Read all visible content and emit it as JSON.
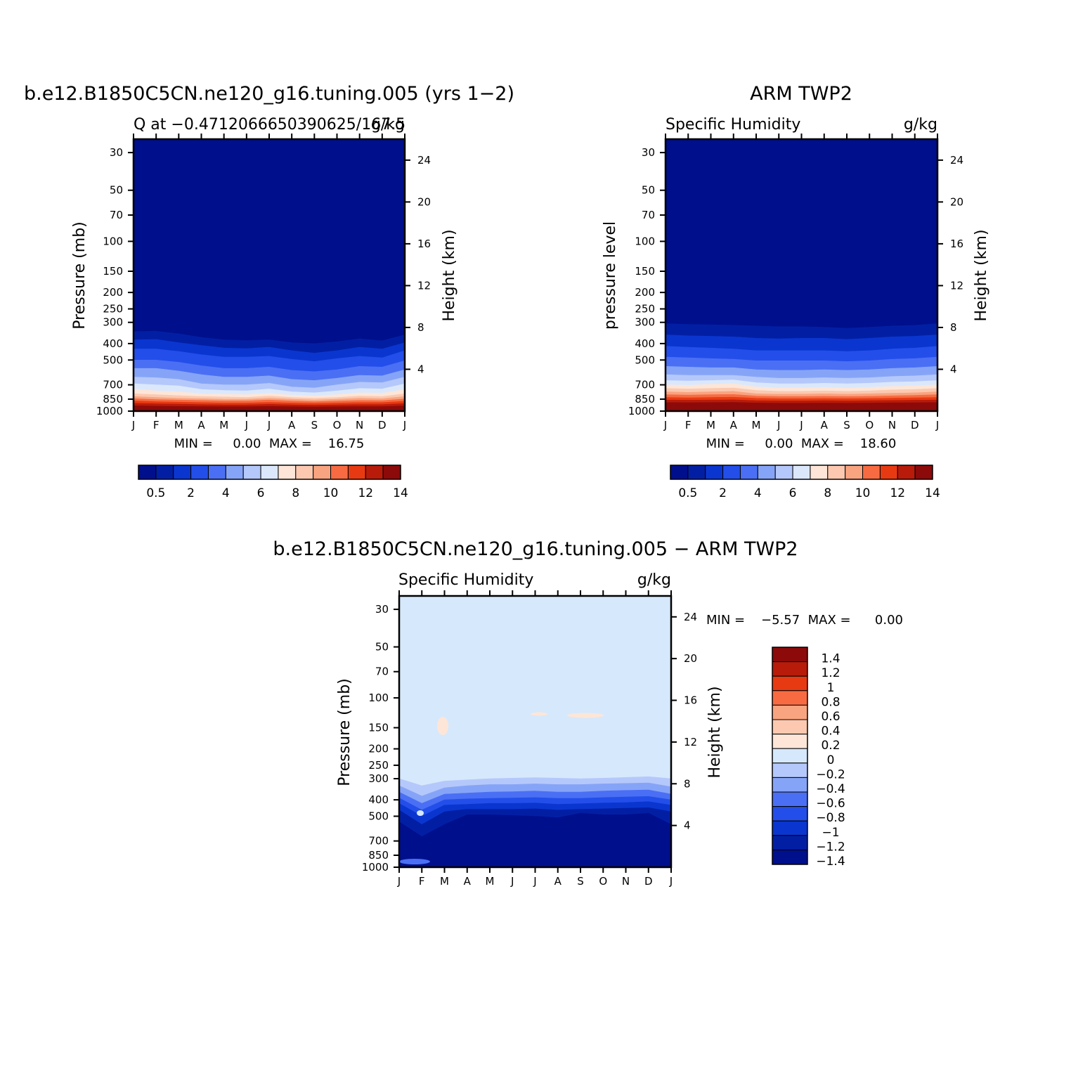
{
  "chart_data": [
    {
      "type": "heatmap",
      "title": "b.e12.B1850C5CN.ne120_g16.tuning.005 (yrs 1−2)",
      "subtitle_left": "Q at −0.4712066650390625/167.5",
      "subtitle_right": "g/kg",
      "ylabel": "Pressure (mb)",
      "ylabel_right": "Height (km)",
      "x_ticks": [
        "J",
        "F",
        "M",
        "A",
        "M",
        "J",
        "J",
        "A",
        "S",
        "O",
        "N",
        "D",
        "J"
      ],
      "y_ticks": [
        30,
        50,
        70,
        100,
        150,
        200,
        250,
        300,
        400,
        500,
        700,
        850,
        1000
      ],
      "y_right_ticks": [
        4,
        8,
        12,
        16,
        20,
        24
      ],
      "ylim": [
        1000,
        25
      ],
      "minmax_text": "MIN =     0.00  MAX =    16.75",
      "colorbar_labels": [
        "0.5",
        "2",
        "4",
        "6",
        "8",
        "10",
        "12",
        "14"
      ],
      "contour_levels": [
        0.5,
        1,
        2,
        3,
        4,
        5,
        6,
        7,
        8,
        9,
        10,
        11,
        12,
        13,
        14
      ],
      "band_tops_mb": [
        [
          420,
          350,
          270,
          160,
          340,
          270,
          180,
          100,
          350,
          260,
          170
        ],
        [
          420,
          350,
          270,
          160,
          340,
          270,
          180,
          100,
          350,
          260,
          170
        ]
      ],
      "min": 0.0,
      "max": 16.75
    },
    {
      "type": "heatmap",
      "title": "ARM TWP2",
      "subtitle_left": "Specific Humidity",
      "subtitle_right": "g/kg",
      "ylabel": "pressure level",
      "ylabel_right": "Height (km)",
      "x_ticks": [
        "J",
        "F",
        "M",
        "A",
        "M",
        "J",
        "J",
        "A",
        "S",
        "O",
        "N",
        "D",
        "J"
      ],
      "y_ticks": [
        30,
        50,
        70,
        100,
        150,
        200,
        250,
        300,
        400,
        500,
        700,
        850,
        1000
      ],
      "y_right_ticks": [
        4,
        8,
        12,
        16,
        20,
        24
      ],
      "ylim": [
        1000,
        25
      ],
      "minmax_text": "MIN =     0.00  MAX =    18.60",
      "colorbar_labels": [
        "0.5",
        "2",
        "4",
        "6",
        "8",
        "10",
        "12",
        "14"
      ],
      "contour_levels": [
        0.5,
        1,
        2,
        3,
        4,
        5,
        6,
        7,
        8,
        9,
        10,
        11,
        12,
        13,
        14
      ],
      "min": 0.0,
      "max": 18.6
    },
    {
      "type": "heatmap",
      "title": "b.e12.B1850C5CN.ne120_g16.tuning.005 − ARM TWP2",
      "subtitle_left": "Specific Humidity",
      "subtitle_right": "g/kg",
      "ylabel": "Pressure (mb)",
      "ylabel_right": "Height (km)",
      "x_ticks": [
        "J",
        "F",
        "M",
        "A",
        "M",
        "J",
        "J",
        "A",
        "S",
        "O",
        "N",
        "D",
        "J"
      ],
      "y_ticks": [
        30,
        50,
        70,
        100,
        150,
        200,
        250,
        300,
        400,
        500,
        700,
        850,
        1000
      ],
      "y_right_ticks": [
        4,
        8,
        12,
        16,
        20,
        24
      ],
      "ylim": [
        1000,
        25
      ],
      "minmax_text": "MIN =    −5.57  MAX =      0.00",
      "colorbar_labels": [
        "1.4",
        "1.2",
        "1",
        "0.8",
        "0.6",
        "0.4",
        "0.2",
        "0",
        "−0.2",
        "−0.4",
        "−0.6",
        "−0.8",
        "−1",
        "−1.2",
        "−1.4"
      ],
      "contour_levels": [
        -1.4,
        -1.2,
        -1,
        -0.8,
        -0.6,
        -0.4,
        -0.2,
        0,
        0.2,
        0.4,
        0.6,
        0.8,
        1,
        1.2,
        1.4
      ],
      "min": -5.57,
      "max": 0.0
    }
  ],
  "colors": {
    "seq": [
      "#000f8c",
      "#021fa4",
      "#0a36cf",
      "#234ee9",
      "#4a6ff4",
      "#86a4f7",
      "#b5c8fb",
      "#dbe8fc",
      "#fde6d8",
      "#fcc9b0",
      "#f9a480",
      "#f86b42",
      "#e83a12",
      "#b81b0a",
      "#8c0a0a"
    ],
    "diff": [
      "#000f8c",
      "#021fa4",
      "#0a36cf",
      "#234ee9",
      "#4a6ff4",
      "#86a4f7",
      "#b5c8fb",
      "#d6e8fc",
      "#fde6d8",
      "#fcc9b0",
      "#f9a480",
      "#f86b42",
      "#e83a12",
      "#b81b0a",
      "#8c0a0a"
    ]
  }
}
